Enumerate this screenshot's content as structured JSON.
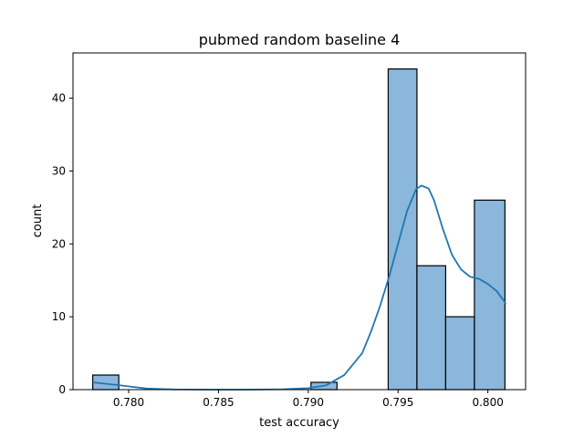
{
  "chart_data": {
    "type": "bar",
    "title": "pubmed random baseline 4",
    "xlabel": "test accuracy",
    "ylabel": "count",
    "xlim": [
      0.7769,
      0.8021
    ],
    "ylim": [
      0,
      46.2
    ],
    "grid": false,
    "xticks": [
      {
        "value": 0.78,
        "label": "0.780"
      },
      {
        "value": 0.785,
        "label": "0.785"
      },
      {
        "value": 0.79,
        "label": "0.790"
      },
      {
        "value": 0.795,
        "label": "0.795"
      },
      {
        "value": 0.8,
        "label": "0.800"
      }
    ],
    "yticks": [
      {
        "value": 0,
        "label": "0"
      },
      {
        "value": 10,
        "label": "10"
      },
      {
        "value": 20,
        "label": "20"
      },
      {
        "value": 30,
        "label": "30"
      },
      {
        "value": 40,
        "label": "40"
      }
    ],
    "bins": [
      {
        "x0": 0.778,
        "x1": 0.77945,
        "count": 2
      },
      {
        "x0": 0.79015,
        "x1": 0.7916,
        "count": 1
      },
      {
        "x0": 0.79445,
        "x1": 0.79605,
        "count": 44
      },
      {
        "x0": 0.79605,
        "x1": 0.79765,
        "count": 17
      },
      {
        "x0": 0.79765,
        "x1": 0.79925,
        "count": 10
      },
      {
        "x0": 0.79925,
        "x1": 0.80095,
        "count": 26
      }
    ],
    "kde": {
      "x": [
        0.778,
        0.7795,
        0.781,
        0.7825,
        0.7845,
        0.7865,
        0.7885,
        0.79,
        0.791,
        0.792,
        0.793,
        0.7935,
        0.794,
        0.7945,
        0.795,
        0.7955,
        0.796,
        0.7963,
        0.7967,
        0.797,
        0.7975,
        0.798,
        0.7985,
        0.799,
        0.7995,
        0.8,
        0.8005,
        0.801
      ],
      "y": [
        1.0,
        0.6,
        0.15,
        0.03,
        0.0,
        0.0,
        0.05,
        0.2,
        0.6,
        2.0,
        5.0,
        8.0,
        11.5,
        15.5,
        20.0,
        24.5,
        27.5,
        28.0,
        27.6,
        26.0,
        22.0,
        18.5,
        16.5,
        15.5,
        15.2,
        14.5,
        13.5,
        11.8
      ]
    }
  }
}
